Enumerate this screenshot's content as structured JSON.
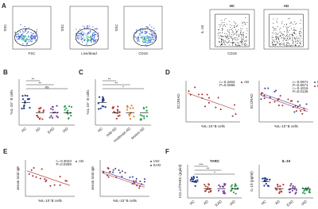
{
  "panels": [
    {
      "letter": "A",
      "plots": [
        {
          "type": "flow",
          "xlabel": "FSC",
          "ylabel": "SSC"
        },
        {
          "type": "flow",
          "xlabel": "Live/dead",
          "ylabel": "SSC"
        },
        {
          "type": "flow",
          "xlabel": "CD19",
          "ylabel": "SSC"
        },
        {
          "type": "gate",
          "title": "HC",
          "xlabel": "CD19",
          "ylabel": "IL-10"
        },
        {
          "type": "gate",
          "title": "AD"
        }
      ]
    },
    {
      "letter": "B",
      "plots": [
        {
          "type": "dots",
          "ylabel": "%IL-10⁺ B cells",
          "categories": [
            "HC",
            "AD",
            "EAD",
            "IAD"
          ],
          "colors": [
            "#1f3b8c",
            "#c0392b",
            "#7b3fa0",
            "#2e9e4f"
          ],
          "sig": [
            "**",
            "**",
            "ns"
          ]
        }
      ]
    },
    {
      "letter": "C",
      "plots": [
        {
          "type": "dots",
          "ylabel": "%IL-10⁺ B cells",
          "categories": [
            "HC",
            "mild AD",
            "moderate AD",
            "severe AD"
          ],
          "colors": [
            "#1f3b8c",
            "#c0392b",
            "#e08a2c",
            "#2e9e4f"
          ],
          "sig": [
            "**",
            "**",
            "*"
          ]
        }
      ]
    },
    {
      "letter": "D",
      "plots": [
        {
          "type": "corr",
          "ylabel": "SCORAD",
          "xlabel": "%IL-10⁺B cells",
          "legend": [
            {
              "name": "AD",
              "color": "#a52a2a"
            }
          ],
          "stats": [
            "r=-0.3463",
            "P=0.0086"
          ]
        },
        {
          "type": "corr",
          "ylabel": "SCORAD",
          "xlabel": "%IL-10⁺B cells",
          "legend": [
            {
              "name": "IAD",
              "color": "#3a3a9a"
            },
            {
              "name": "EAD",
              "color": "#a52a2a"
            }
          ],
          "stats": [
            "r=-0.0971",
            "P=0.6571",
            "r=-0.4216",
            "P=0.0136"
          ]
        }
      ]
    },
    {
      "letter": "E",
      "plots": [
        {
          "type": "corr",
          "ylabel": "serum total IgE",
          "xlabel": "%IL-10⁺B cells",
          "legend": [
            {
              "name": "AD",
              "color": "#a52a2a"
            }
          ],
          "stats": [
            "r=-0.3023",
            "P=0.0269"
          ]
        },
        {
          "type": "corr",
          "ylabel": "serum total IgE",
          "xlabel": "%IL-10⁺B cells",
          "legend": [
            {
              "name": "IAD",
              "color": "#3a3a9a"
            },
            {
              "name": "EAD",
              "color": "#a52a2a"
            }
          ],
          "stats": []
        }
      ]
    },
    {
      "letter": "F",
      "plots": [
        {
          "type": "dots",
          "title": "TARC",
          "ylabel": "CCL17/TARC (pg/ml)",
          "categories": [
            "HC",
            "AD",
            "EAD",
            "IAD"
          ],
          "colors": [
            "#1f3b8c",
            "#c0392b",
            "#7b3fa0",
            "#2e9e4f"
          ],
          "sig": [
            "***",
            "**",
            "*"
          ]
        },
        {
          "type": "dots",
          "title": "IL-10",
          "ylabel": "IL-10 (pg/ml)",
          "categories": [
            "HC",
            "AD",
            "EAD",
            "IAD"
          ],
          "colors": [
            "#1f3b8c",
            "#c0392b",
            "#7b3fa0",
            "#2e9e4f"
          ],
          "sig": []
        }
      ]
    }
  ]
}
